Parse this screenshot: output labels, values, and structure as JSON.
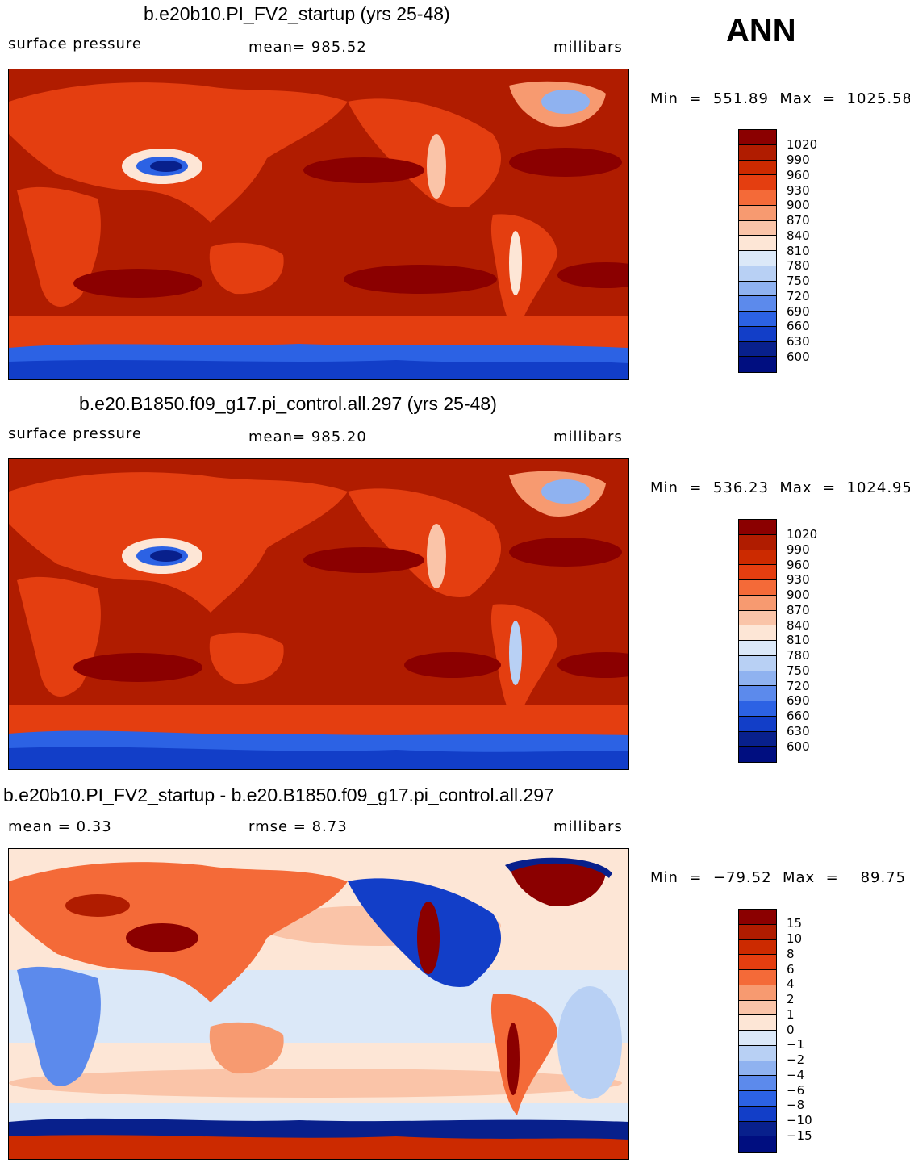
{
  "season": "ANN",
  "panels": [
    {
      "title": "b.e20b10.PI_FV2_startup (yrs 25-48)",
      "left_label": "surface pressure",
      "center_label": "mean=  985.52",
      "right_label": "millibars",
      "minmax": "Min  =  551.89  Max  =  1025.58",
      "colorbar": [
        "1020",
        "990",
        "960",
        "930",
        "900",
        "870",
        "840",
        "810",
        "780",
        "750",
        "720",
        "690",
        "660",
        "630",
        "600"
      ],
      "colors": [
        "#8b0000",
        "#b01c00",
        "#cc2a00",
        "#e43e10",
        "#f46a38",
        "#f79a70",
        "#fac4a8",
        "#fde6d6",
        "#dbe8f8",
        "#b8d0f4",
        "#8fb2f0",
        "#5c8aec",
        "#2c62e4",
        "#123ec8",
        "#08208c",
        "#000e80"
      ]
    },
    {
      "title": "b.e20.B1850.f09_g17.pi_control.all.297 (yrs 25-48)",
      "left_label": "surface pressure",
      "center_label": "mean=  985.20",
      "right_label": "millibars",
      "minmax": "Min  =  536.23  Max  =  1024.95",
      "colorbar": [
        "1020",
        "990",
        "960",
        "930",
        "900",
        "870",
        "840",
        "810",
        "780",
        "750",
        "720",
        "690",
        "660",
        "630",
        "600"
      ],
      "colors": [
        "#8b0000",
        "#b01c00",
        "#cc2a00",
        "#e43e10",
        "#f46a38",
        "#f79a70",
        "#fac4a8",
        "#fde6d6",
        "#dbe8f8",
        "#b8d0f4",
        "#8fb2f0",
        "#5c8aec",
        "#2c62e4",
        "#123ec8",
        "#08208c",
        "#000e80"
      ]
    },
    {
      "title": "b.e20b10.PI_FV2_startup - b.e20.B1850.f09_g17.pi_control.all.297",
      "left_label": "mean  =     0.33",
      "center_label": "rmse  =     8.73",
      "right_label": "millibars",
      "minmax": "Min  =  −79.52  Max  =    89.75",
      "colorbar": [
        "15",
        "10",
        "8",
        "6",
        "4",
        "2",
        "1",
        "0",
        "−1",
        "−2",
        "−4",
        "−6",
        "−8",
        "−10",
        "−15"
      ],
      "colors": [
        "#8b0000",
        "#b01c00",
        "#cc2a00",
        "#e43e10",
        "#f46a38",
        "#f79a70",
        "#fac4a8",
        "#fde6d6",
        "#dbe8f8",
        "#b8d0f4",
        "#8fb2f0",
        "#5c8aec",
        "#2c62e4",
        "#123ec8",
        "#08208c",
        "#000e80"
      ]
    }
  ]
}
